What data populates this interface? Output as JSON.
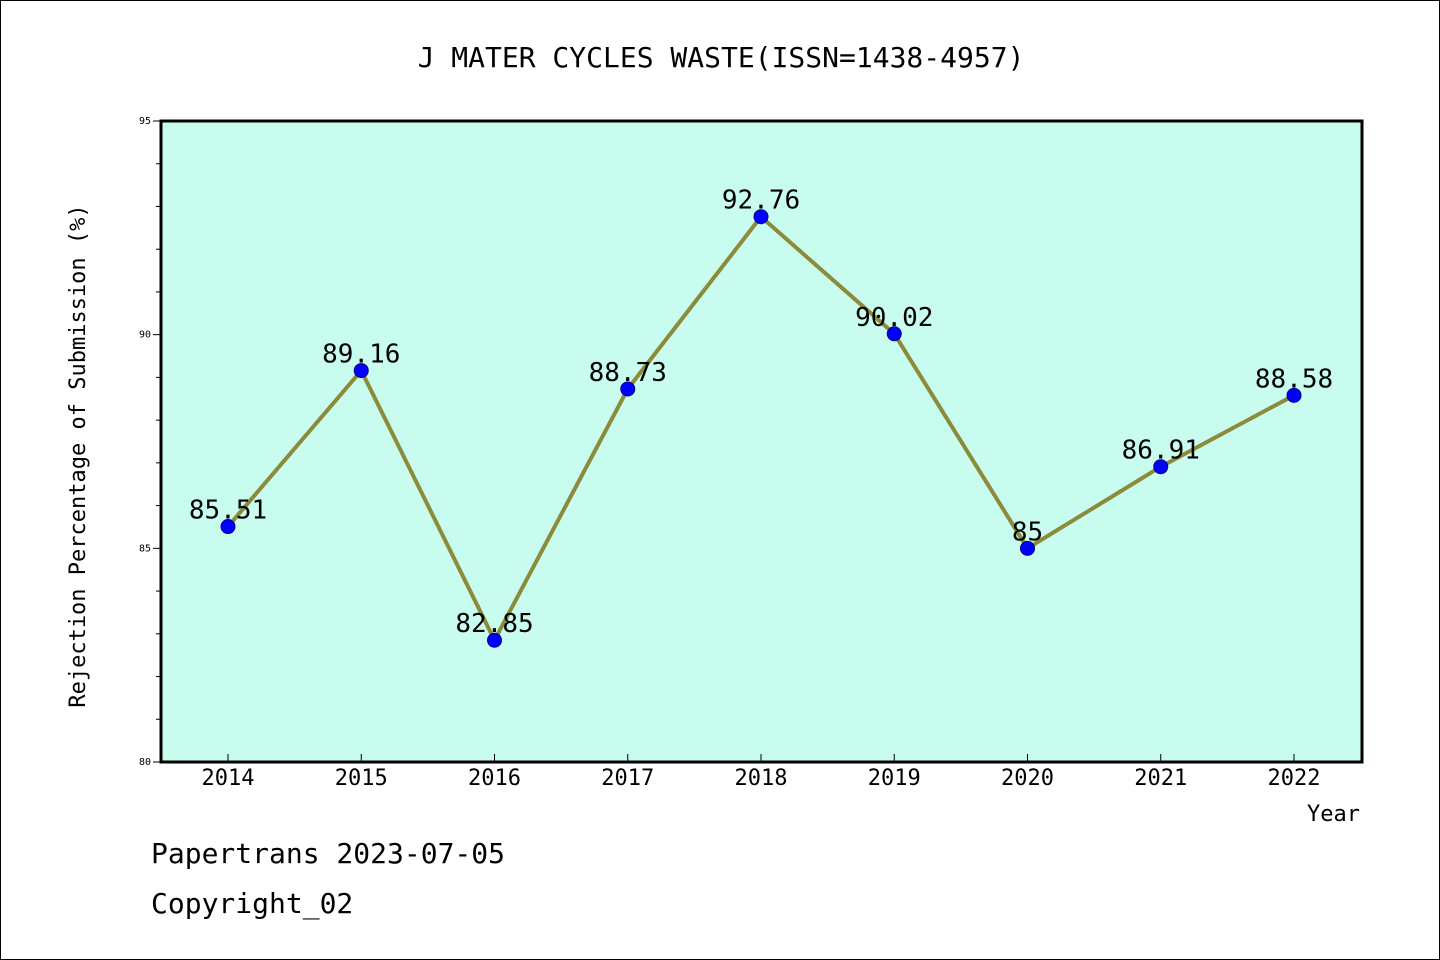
{
  "chart_data": {
    "type": "line",
    "title": "J MATER CYCLES WASTE(ISSN=1438-4957)",
    "xlabel": "Year",
    "ylabel": "Rejection Percentage of Submission (%)",
    "categories": [
      "2014",
      "2015",
      "2016",
      "2017",
      "2018",
      "2019",
      "2020",
      "2021",
      "2022"
    ],
    "series": [
      {
        "values": [
          85.51,
          89.16,
          82.85,
          88.73,
          92.76,
          90.02,
          85,
          86.91,
          88.58
        ],
        "labels": [
          "85.51",
          "89.16",
          "82.85",
          "88.73",
          "92.76",
          "90.02",
          "85",
          "86.91",
          "88.58"
        ]
      }
    ],
    "ylim": [
      80,
      95
    ],
    "yticks": [
      "80",
      "85",
      "90",
      "95"
    ],
    "grid": false,
    "legend": "none",
    "colors": {
      "plot_background": "#c8fcee",
      "line": "#8b8b3a",
      "marker": "#0000ff"
    }
  },
  "footer": {
    "source": "Papertrans 2023-07-05",
    "copyright": "Copyright_02"
  }
}
